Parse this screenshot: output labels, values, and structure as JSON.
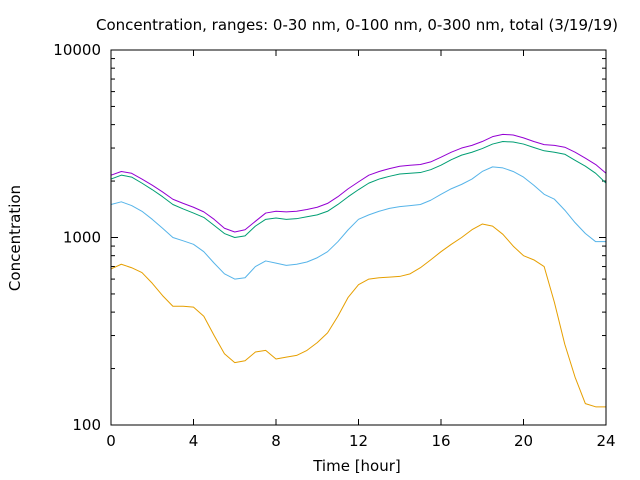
{
  "chart_data": {
    "type": "line",
    "title": "Concentration, ranges: 0-30 nm, 0-100 nm, 0-300 nm, total (3/19/19)",
    "xlabel": "Time [hour]",
    "ylabel": "Concentration",
    "xlim": [
      0,
      24
    ],
    "ylim": [
      100,
      10000
    ],
    "yscale": "log",
    "grid": false,
    "xticks": [
      0,
      4,
      8,
      12,
      16,
      20,
      24
    ],
    "xtick_labels": [
      "0",
      "4",
      "8",
      "12",
      "16",
      "20",
      "24"
    ],
    "yticks": [
      100,
      1000,
      10000
    ],
    "ytick_labels": [
      "100",
      "1000",
      "10000"
    ],
    "series": [
      {
        "color": "#e69f00",
        "x": [
          0,
          0.5,
          1,
          1.5,
          2,
          2.5,
          3,
          3.5,
          4,
          4.5,
          5,
          5.5,
          6,
          6.5,
          7,
          7.5,
          8,
          8.5,
          9,
          9.5,
          10,
          10.5,
          11,
          11.5,
          12,
          12.5,
          13,
          13.5,
          14,
          14.5,
          15,
          15.5,
          16,
          16.5,
          17,
          17.5,
          18,
          18.5,
          19,
          19.5,
          20,
          20.5,
          21,
          21.5,
          22,
          22.5,
          23,
          23.5,
          24
        ],
        "y": [
          680,
          720,
          690,
          650,
          570,
          490,
          430,
          430,
          425,
          380,
          300,
          240,
          215,
          220,
          245,
          250,
          225,
          230,
          235,
          250,
          275,
          310,
          380,
          480,
          560,
          600,
          610,
          615,
          620,
          640,
          690,
          760,
          840,
          920,
          1000,
          1100,
          1180,
          1150,
          1040,
          900,
          800,
          760,
          700,
          450,
          270,
          180,
          130,
          125,
          125
        ]
      },
      {
        "color": "#56b4e9",
        "x": [
          0,
          0.5,
          1,
          1.5,
          2,
          2.5,
          3,
          3.5,
          4,
          4.5,
          5,
          5.5,
          6,
          6.5,
          7,
          7.5,
          8,
          8.5,
          9,
          9.5,
          10,
          10.5,
          11,
          11.5,
          12,
          12.5,
          13,
          13.5,
          14,
          14.5,
          15,
          15.5,
          16,
          16.5,
          17,
          17.5,
          18,
          18.5,
          19,
          19.5,
          20,
          20.5,
          21,
          21.5,
          22,
          22.5,
          23,
          23.5,
          24
        ],
        "y": [
          1500,
          1550,
          1480,
          1380,
          1250,
          1120,
          1000,
          960,
          920,
          840,
          730,
          640,
          600,
          610,
          700,
          750,
          730,
          710,
          720,
          740,
          780,
          840,
          950,
          1100,
          1250,
          1320,
          1380,
          1430,
          1460,
          1480,
          1500,
          1580,
          1700,
          1820,
          1920,
          2050,
          2250,
          2380,
          2350,
          2250,
          2100,
          1900,
          1700,
          1600,
          1400,
          1200,
          1050,
          950,
          950
        ]
      },
      {
        "color": "#009e73",
        "x": [
          0,
          0.5,
          1,
          1.5,
          2,
          2.5,
          3,
          3.5,
          4,
          4.5,
          5,
          5.5,
          6,
          6.5,
          7,
          7.5,
          8,
          8.5,
          9,
          9.5,
          10,
          10.5,
          11,
          11.5,
          12,
          12.5,
          13,
          13.5,
          14,
          14.5,
          15,
          15.5,
          16,
          16.5,
          17,
          17.5,
          18,
          18.5,
          19,
          19.5,
          20,
          20.5,
          21,
          21.5,
          22,
          22.5,
          23,
          23.5,
          24
        ],
        "y": [
          2050,
          2150,
          2100,
          1950,
          1800,
          1650,
          1500,
          1420,
          1350,
          1280,
          1160,
          1050,
          1000,
          1020,
          1150,
          1250,
          1270,
          1250,
          1260,
          1290,
          1320,
          1380,
          1500,
          1650,
          1800,
          1950,
          2050,
          2120,
          2180,
          2200,
          2220,
          2300,
          2430,
          2600,
          2750,
          2850,
          2980,
          3150,
          3250,
          3230,
          3150,
          3020,
          2900,
          2850,
          2780,
          2580,
          2400,
          2200,
          1950
        ]
      },
      {
        "color": "#9400d3",
        "x": [
          0,
          0.5,
          1,
          1.5,
          2,
          2.5,
          3,
          3.5,
          4,
          4.5,
          5,
          5.5,
          6,
          6.5,
          7,
          7.5,
          8,
          8.5,
          9,
          9.5,
          10,
          10.5,
          11,
          11.5,
          12,
          12.5,
          13,
          13.5,
          14,
          14.5,
          15,
          15.5,
          16,
          16.5,
          17,
          17.5,
          18,
          18.5,
          19,
          19.5,
          20,
          20.5,
          21,
          21.5,
          22,
          22.5,
          23,
          23.5,
          24
        ],
        "y": [
          2150,
          2250,
          2200,
          2050,
          1900,
          1750,
          1600,
          1520,
          1450,
          1370,
          1250,
          1120,
          1070,
          1100,
          1220,
          1350,
          1380,
          1370,
          1380,
          1410,
          1450,
          1520,
          1650,
          1820,
          1980,
          2150,
          2250,
          2330,
          2400,
          2430,
          2450,
          2530,
          2680,
          2850,
          3000,
          3100,
          3250,
          3450,
          3550,
          3520,
          3400,
          3250,
          3130,
          3100,
          3030,
          2850,
          2650,
          2450,
          2200
        ]
      }
    ]
  }
}
